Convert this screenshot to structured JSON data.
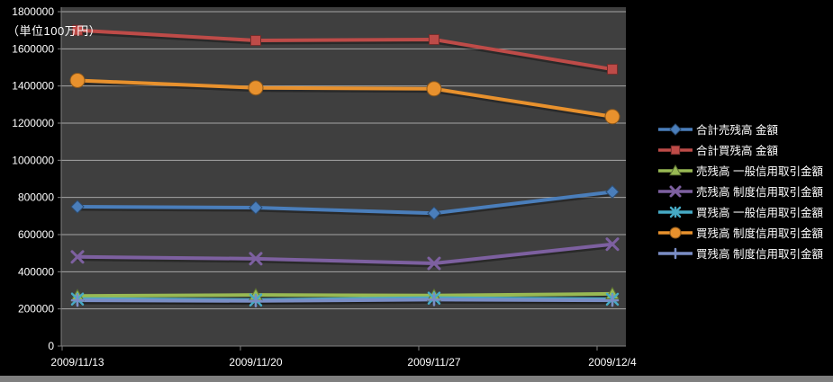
{
  "chart_data": {
    "type": "line",
    "title": "",
    "unit_label": "（単位100万円）",
    "categories": [
      "2009/11/13",
      "2009/11/20",
      "2009/11/27",
      "2009/12/4"
    ],
    "series": [
      {
        "name": "合計売残高 金額",
        "color": "#4a7ebb",
        "marker": "diamond",
        "values": [
          750000,
          745000,
          715000,
          830000
        ]
      },
      {
        "name": "合計買残高 金額",
        "color": "#be4b48",
        "marker": "square",
        "values": [
          1700000,
          1645000,
          1650000,
          1490000
        ]
      },
      {
        "name": "売残高 一般信用取引金額",
        "color": "#98b954",
        "marker": "triangle",
        "values": [
          270000,
          275000,
          272000,
          281000
        ]
      },
      {
        "name": "売残高 制度信用取引金額",
        "color": "#7d60a0",
        "marker": "x",
        "values": [
          480000,
          470000,
          445000,
          548000
        ]
      },
      {
        "name": "買残高 一般信用取引金額",
        "color": "#46aac5",
        "marker": "asterisk",
        "values": [
          253000,
          248000,
          258000,
          252000
        ]
      },
      {
        "name": "買残高 制度信用取引金額",
        "color": "#e8912d",
        "marker": "circle",
        "values": [
          1430000,
          1390000,
          1385000,
          1235000
        ]
      },
      {
        "name": "買残高 制度信用取引金額",
        "color": "#7a8dc5",
        "marker": "plus",
        "values": [
          246000,
          243000,
          250000,
          246000
        ]
      }
    ],
    "ylim": [
      0,
      1800000
    ],
    "ytick_step": 200000,
    "ytick_labels": [
      "0",
      "200000",
      "400000",
      "600000",
      "800000",
      "1000000",
      "1200000",
      "1400000",
      "1600000",
      "1800000"
    ],
    "grid": true,
    "legend_position": "right",
    "colors": {
      "page_background": "#000000",
      "plot_background": "#3f3f3f",
      "gridline": "#a6a6a6",
      "axis_line": "#808080",
      "tick": "#808080",
      "text": "#ffffff"
    }
  }
}
